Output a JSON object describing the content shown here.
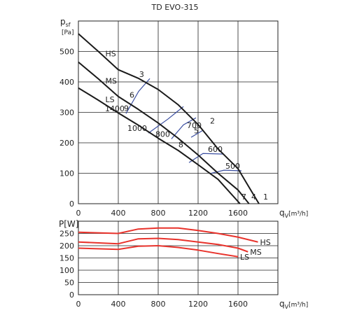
{
  "chart_data": [
    {
      "type": "line",
      "title": "TD EVO-315",
      "y_label": {
        "symbol": "p",
        "subscript": "sf",
        "unit": "[Pa]"
      },
      "x_label": {
        "symbol": "q",
        "subscript": "V",
        "unit": "[m³/h]"
      },
      "xlim": [
        0,
        2000
      ],
      "ylim": [
        0,
        600
      ],
      "xticks": [
        0,
        400,
        800,
        1200,
        1600
      ],
      "yticks": [
        0,
        100,
        200,
        300,
        400,
        500
      ],
      "grid": true,
      "series": [
        {
          "name": "HS",
          "color": "#1a1a1a",
          "x": [
            0,
            200,
            400,
            600,
            800,
            1000,
            1200,
            1400,
            1600,
            1700,
            1810
          ],
          "values": [
            558,
            500,
            440,
            412,
            375,
            325,
            260,
            180,
            115,
            60,
            0
          ]
        },
        {
          "name": "MS",
          "color": "#1a1a1a",
          "x": [
            0,
            200,
            400,
            600,
            800,
            1000,
            1200,
            1400,
            1600,
            1710
          ],
          "values": [
            465,
            410,
            352,
            310,
            265,
            215,
            160,
            100,
            45,
            0
          ]
        },
        {
          "name": "LS",
          "color": "#1a1a1a",
          "x": [
            0,
            200,
            400,
            600,
            800,
            1000,
            1200,
            1400,
            1620
          ],
          "values": [
            380,
            340,
            298,
            258,
            215,
            175,
            128,
            80,
            0
          ]
        }
      ],
      "contours": [
        {
          "label": "1400",
          "color": "#3a4ea0",
          "x": [
            716,
            604,
            477
          ],
          "y": [
            411,
            369,
            296
          ]
        },
        {
          "label": "1000",
          "color": "#3a4ea0",
          "x": [
            1053,
            898,
            702
          ],
          "y": [
            319,
            278,
            232
          ]
        },
        {
          "label": "800",
          "color": "#3a4ea0",
          "x": [
            1179,
            1053,
            933
          ],
          "y": [
            282,
            259,
            213
          ]
        },
        {
          "label": "700",
          "color": "#3a4ea0",
          "x": [
            1130,
            1249
          ],
          "y": [
            218,
            241
          ]
        },
        {
          "label": "600",
          "color": "#3a4ea0",
          "x": [
            1109,
            1249,
            1460
          ],
          "y": [
            135,
            165,
            163
          ]
        },
        {
          "label": "500",
          "color": "#3a4ea0",
          "x": [
            1319,
            1460,
            1635
          ],
          "y": [
            99,
            110,
            108
          ]
        }
      ],
      "point_labels": [
        {
          "text": "1",
          "x": 1839,
          "y": 9
        },
        {
          "text": "4",
          "x": 1719,
          "y": 9
        },
        {
          "text": "7",
          "x": 1621,
          "y": 9
        },
        {
          "text": "2",
          "x": 1305,
          "y": 259
        },
        {
          "text": "5",
          "x": 1144,
          "y": 227
        },
        {
          "text": "8",
          "x": 989,
          "y": 181
        },
        {
          "text": "3",
          "x": 596,
          "y": 411
        },
        {
          "text": "6",
          "x": 498,
          "y": 344
        },
        {
          "text": "9",
          "x": 442,
          "y": 300
        }
      ]
    },
    {
      "type": "line",
      "y_label": {
        "symbol": "P",
        "unit": "[W]"
      },
      "x_label": {
        "symbol": "q",
        "subscript": "V",
        "unit": "[m³/h]"
      },
      "xlim": [
        0,
        2000
      ],
      "ylim": [
        0,
        300
      ],
      "xticks": [
        0,
        400,
        800,
        1200,
        1600
      ],
      "yticks": [
        0,
        50,
        100,
        150,
        200,
        250
      ],
      "grid": true,
      "axis_color": "#e8332c",
      "series": [
        {
          "name": "HS",
          "color": "#e8332c",
          "x": [
            0,
            400,
            600,
            800,
            1000,
            1200,
            1400,
            1600,
            1800
          ],
          "values": [
            255,
            250,
            268,
            272,
            272,
            262,
            250,
            235,
            215
          ]
        },
        {
          "name": "MS",
          "color": "#e8332c",
          "x": [
            0,
            400,
            600,
            800,
            1000,
            1200,
            1400,
            1600,
            1700
          ],
          "values": [
            215,
            208,
            228,
            230,
            225,
            215,
            205,
            190,
            175
          ]
        },
        {
          "name": "LS",
          "color": "#e8332c",
          "x": [
            0,
            400,
            600,
            800,
            1000,
            1200,
            1400,
            1600
          ],
          "values": [
            190,
            185,
            198,
            200,
            193,
            182,
            168,
            155
          ]
        }
      ]
    }
  ]
}
